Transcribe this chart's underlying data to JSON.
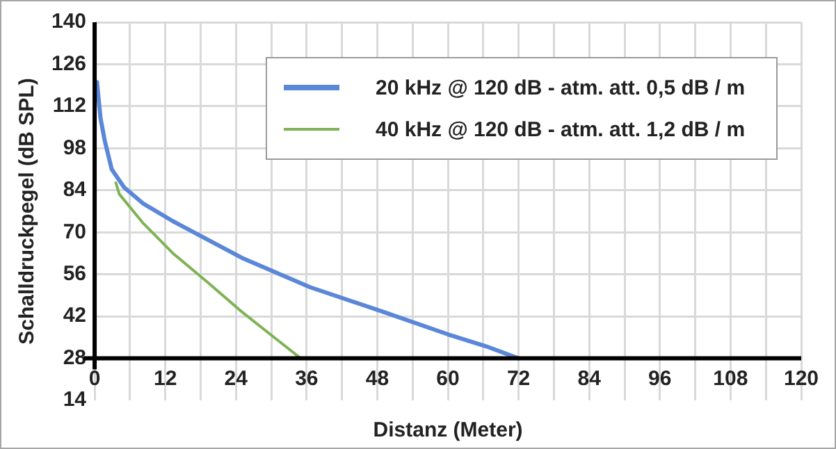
{
  "chart_data": {
    "type": "line",
    "xlabel": "Distanz (Meter)",
    "ylabel": "Schalldruckpegel (dB SPL)",
    "xlim": [
      0,
      120
    ],
    "xticks": [
      0,
      {
        "value": 6,
        "label": null
      },
      12,
      {
        "value": 18,
        "label": null
      },
      24,
      {
        "value": 30,
        "label": null
      },
      36,
      {
        "value": 42,
        "label": null
      },
      48,
      {
        "value": 54,
        "label": null
      },
      60,
      {
        "value": 66,
        "label": null
      },
      72,
      {
        "value": 78,
        "label": null
      },
      84,
      {
        "value": 90,
        "label": null
      },
      96,
      {
        "value": 102,
        "label": null
      },
      108,
      {
        "value": 114,
        "label": null
      },
      120
    ],
    "ylim": [
      14,
      140
    ],
    "yticks": [
      14,
      28,
      42,
      56,
      70,
      84,
      98,
      112,
      126,
      140
    ],
    "grid": true,
    "legend": "top right",
    "marker": "none",
    "line_style": "solid",
    "series": [
      {
        "name": "20 kHz @ 120 dB - atm. att. 0,5 dB / m",
        "color": "#5b87d9",
        "x": [
          0.4,
          1,
          1.7,
          2.9,
          5,
          8.3,
          13.3,
          25,
          36.6,
          49,
          60,
          66.5,
          72
        ],
        "values": [
          120,
          108,
          100.7,
          91,
          85,
          79.5,
          73.7,
          61.5,
          51.7,
          43.5,
          36,
          32,
          28
        ]
      },
      {
        "name": "40 kHz @ 120 dB - atm. att. 1,2 dB / m",
        "color": "#7eb356",
        "x": [
          3.6,
          4.2,
          8.3,
          13.3,
          19.2,
          25,
          30.8,
          35
        ],
        "values": [
          86.5,
          82.7,
          72.9,
          63,
          53.3,
          43.5,
          34.5,
          28
        ]
      }
    ]
  }
}
